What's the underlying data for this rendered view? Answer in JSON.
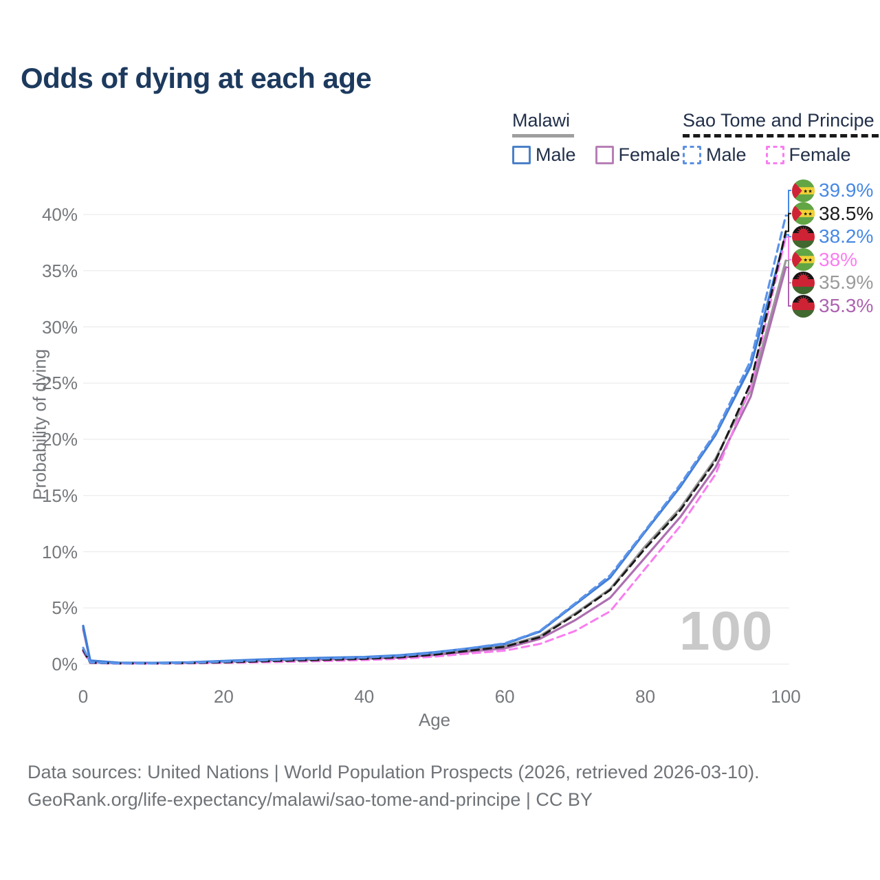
{
  "title": "Odds of dying at each age",
  "watermark": "100",
  "legend": {
    "groups": [
      {
        "country": "Malawi",
        "line_style": "solid",
        "underline_color": "#9e9e9e",
        "items": [
          {
            "label": "Male",
            "color": "#4a80c8"
          },
          {
            "label": "Female",
            "color": "#b77fb5"
          }
        ]
      },
      {
        "country": "Sao Tome and Principe",
        "line_style": "dashed",
        "underline_color": "#1a1a1a",
        "items": [
          {
            "label": "Male",
            "color": "#5b8fe2"
          },
          {
            "label": "Female",
            "color": "#f97df0"
          }
        ]
      }
    ]
  },
  "chart_data": {
    "type": "line",
    "title": "Odds of dying at each age",
    "xlabel": "Age",
    "ylabel": "Probability of dying",
    "xlim": [
      0,
      100
    ],
    "ylim_percent": [
      0,
      42
    ],
    "grid": "horizontal",
    "xticks": [
      "0",
      "20",
      "40",
      "60",
      "80",
      "100"
    ],
    "xtick_values": [
      0,
      20,
      40,
      60,
      80,
      100
    ],
    "ytick_labels": [
      "0%",
      "5%",
      "10%",
      "15%",
      "20%",
      "25%",
      "30%",
      "35%",
      "40%"
    ],
    "ytick_values": [
      0,
      5,
      10,
      15,
      20,
      25,
      30,
      35,
      40
    ],
    "ages": [
      0,
      1,
      5,
      10,
      15,
      20,
      25,
      30,
      35,
      40,
      45,
      50,
      55,
      60,
      65,
      70,
      75,
      80,
      85,
      90,
      95,
      100
    ],
    "unit": "percent",
    "series": [
      {
        "id": "malawi-overall",
        "name": "Malawi",
        "sex": "All",
        "color": "#9a9a9a",
        "dash": null,
        "width": 3.2,
        "values": [
          3.25,
          0.3,
          0.12,
          0.1,
          0.14,
          0.25,
          0.36,
          0.45,
          0.5,
          0.55,
          0.68,
          0.92,
          1.28,
          1.6,
          2.5,
          4.5,
          6.7,
          10.5,
          13.9,
          18.3,
          24.4,
          35.9
        ],
        "end_label": "35.9%"
      },
      {
        "id": "malawi-female",
        "name": "Malawi Female",
        "sex": "Female",
        "color": "#ad6fb0",
        "dash": null,
        "width": 3.2,
        "values": [
          3.1,
          0.28,
          0.11,
          0.09,
          0.12,
          0.21,
          0.3,
          0.38,
          0.43,
          0.48,
          0.59,
          0.8,
          1.12,
          1.4,
          2.25,
          3.9,
          5.9,
          9.5,
          13.1,
          17.5,
          23.8,
          35.3
        ],
        "end_label": "35.3%"
      },
      {
        "id": "malawi-male",
        "name": "Malawi Male",
        "sex": "Male",
        "color": "#3f7dd8",
        "dash": null,
        "width": 3.4,
        "values": [
          3.4,
          0.32,
          0.13,
          0.11,
          0.16,
          0.28,
          0.4,
          0.5,
          0.57,
          0.63,
          0.78,
          1.05,
          1.4,
          1.8,
          2.9,
          5.3,
          7.7,
          11.8,
          15.8,
          20.4,
          26.5,
          38.2
        ],
        "end_label": "38.2%"
      },
      {
        "id": "sao-tome-female",
        "name": "Sao Tome and Principe Female",
        "sex": "Female",
        "color": "#f97df0",
        "dash": [
          11,
          7
        ],
        "width": 3.0,
        "values": [
          1.1,
          0.1,
          0.05,
          0.05,
          0.07,
          0.11,
          0.16,
          0.22,
          0.28,
          0.36,
          0.47,
          0.66,
          0.95,
          1.2,
          1.8,
          2.95,
          4.7,
          8.5,
          12.3,
          16.9,
          24.6,
          38.0
        ],
        "end_label": "38%"
      },
      {
        "id": "sao-tome-overall",
        "name": "Sao Tome and Principe",
        "sex": "All",
        "color": "#1a1a1a",
        "dash": [
          11,
          7
        ],
        "width": 3.0,
        "values": [
          1.25,
          0.13,
          0.06,
          0.06,
          0.09,
          0.16,
          0.24,
          0.32,
          0.39,
          0.47,
          0.6,
          0.84,
          1.2,
          1.55,
          2.4,
          4.4,
          6.6,
          10.3,
          13.7,
          18.1,
          25.0,
          38.5
        ],
        "end_label": "38.5%"
      },
      {
        "id": "sao-tome-male",
        "name": "Sao Tome and Principe Male",
        "sex": "Male",
        "color": "#5b93e8",
        "dash": [
          11,
          7
        ],
        "width": 3.2,
        "values": [
          1.45,
          0.16,
          0.07,
          0.07,
          0.12,
          0.22,
          0.33,
          0.42,
          0.5,
          0.58,
          0.73,
          1.0,
          1.42,
          1.85,
          2.95,
          5.4,
          7.9,
          11.9,
          16.0,
          20.6,
          27.0,
          39.9
        ],
        "end_label": "39.9%"
      }
    ]
  },
  "end_labels": [
    {
      "series": "sao-tome-male",
      "flag": "sao-tome-and-principe",
      "text": "39.9%",
      "color": "#4688e4",
      "value": 39.9
    },
    {
      "series": "sao-tome-overall",
      "flag": "sao-tome-and-principe",
      "text": "38.5%",
      "color": "#1a1a1a",
      "value": 38.5
    },
    {
      "series": "malawi-male",
      "flag": "malawi",
      "text": "38.2%",
      "color": "#4688e4",
      "value": 38.2
    },
    {
      "series": "sao-tome-female",
      "flag": "sao-tome-and-principe",
      "text": "38%",
      "color": "#f97df0",
      "value": 38.0
    },
    {
      "series": "malawi-overall",
      "flag": "malawi",
      "text": "35.9%",
      "color": "#9a9a9a",
      "value": 35.9
    },
    {
      "series": "malawi-female",
      "flag": "malawi",
      "text": "35.3%",
      "color": "#ad62b0",
      "value": 35.3
    }
  ],
  "footer": {
    "line1": "Data sources: United Nations | World Population Prospects (2026, retrieved 2026-03-10).",
    "line2": "GeoRank.org/life-expectancy/malawi/sao-tome-and-principe | CC BY"
  }
}
